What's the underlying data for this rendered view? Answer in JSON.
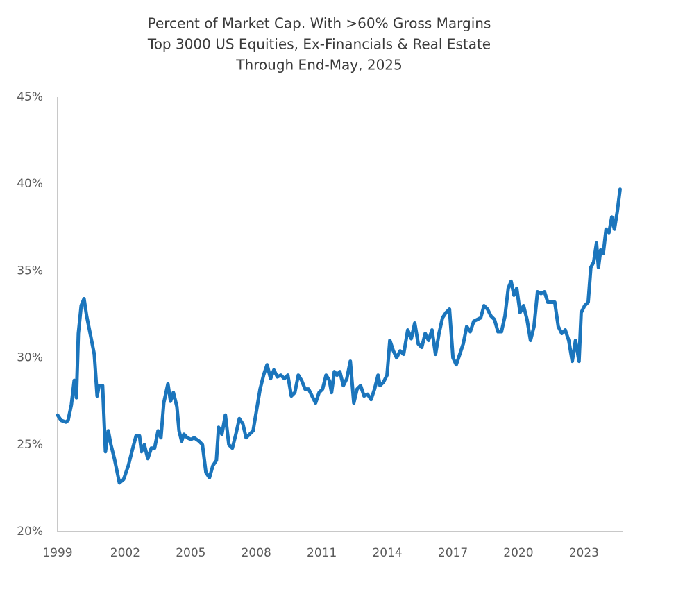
{
  "chart_data": {
    "type": "line",
    "title_lines": [
      "Percent of Market Cap. With >60% Gross Margins",
      "Top 3000 US Equities, Ex-Financials & Real Estate",
      "Through End-May, 2025"
    ],
    "x": [
      1999.0,
      1999.16,
      1999.38,
      1999.48,
      1999.63,
      1999.76,
      1999.86,
      1999.95,
      2000.08,
      2000.21,
      2000.33,
      2000.49,
      2000.68,
      2000.81,
      2000.9,
      2001.06,
      2001.19,
      2001.32,
      2001.44,
      2001.6,
      2001.83,
      2002.02,
      2002.24,
      2002.4,
      2002.59,
      2002.75,
      2002.84,
      2002.97,
      2003.13,
      2003.29,
      2003.44,
      2003.6,
      2003.73,
      2003.86,
      2004.05,
      2004.17,
      2004.3,
      2004.46,
      2004.56,
      2004.68,
      2004.78,
      2004.94,
      2005.1,
      2005.25,
      2005.48,
      2005.63,
      2005.79,
      2005.95,
      2006.11,
      2006.27,
      2006.37,
      2006.52,
      2006.68,
      2006.84,
      2007.0,
      2007.16,
      2007.32,
      2007.48,
      2007.63,
      2007.79,
      2007.95,
      2008.11,
      2008.27,
      2008.43,
      2008.59,
      2008.75,
      2008.9,
      2009.06,
      2009.22,
      2009.38,
      2009.54,
      2009.7,
      2009.86,
      2010.02,
      2010.17,
      2010.33,
      2010.49,
      2010.65,
      2010.81,
      2010.97,
      2011.13,
      2011.29,
      2011.44,
      2011.54,
      2011.67,
      2011.79,
      2011.92,
      2012.08,
      2012.24,
      2012.4,
      2012.56,
      2012.71,
      2012.87,
      2013.03,
      2013.19,
      2013.35,
      2013.51,
      2013.67,
      2013.76,
      2013.92,
      2014.08,
      2014.21,
      2014.37,
      2014.52,
      2014.68,
      2014.84,
      2015.03,
      2015.19,
      2015.35,
      2015.51,
      2015.67,
      2015.83,
      2015.98,
      2016.14,
      2016.3,
      2016.46,
      2016.62,
      2016.78,
      2016.94,
      2017.1,
      2017.25,
      2017.41,
      2017.57,
      2017.73,
      2017.89,
      2018.05,
      2018.21,
      2018.37,
      2018.52,
      2018.68,
      2018.84,
      2019.0,
      2019.16,
      2019.32,
      2019.48,
      2019.63,
      2019.76,
      2019.89,
      2020.02,
      2020.17,
      2020.33,
      2020.49,
      2020.65,
      2020.81,
      2020.97,
      2021.13,
      2021.29,
      2021.44,
      2021.6,
      2021.76,
      2021.92,
      2022.08,
      2022.24,
      2022.4,
      2022.56,
      2022.71,
      2022.87,
      2022.97,
      2023.13,
      2023.29,
      2023.41,
      2023.54,
      2023.67,
      2023.76,
      2023.86,
      2023.98,
      2024.11,
      2024.24,
      2024.37,
      2024.49,
      2024.62,
      2024.75
    ],
    "series": [
      {
        "color": "#1b75bc",
        "values": [
          26.7,
          26.4,
          26.3,
          26.4,
          27.3,
          28.7,
          27.7,
          31.4,
          33.0,
          33.4,
          32.4,
          31.4,
          30.2,
          27.8,
          28.4,
          28.4,
          24.6,
          25.8,
          25.0,
          24.2,
          22.8,
          23.0,
          23.8,
          24.6,
          25.5,
          25.5,
          24.6,
          25.0,
          24.2,
          24.8,
          24.8,
          25.8,
          25.4,
          27.4,
          28.5,
          27.5,
          28.0,
          27.2,
          25.8,
          25.2,
          25.6,
          25.4,
          25.3,
          25.4,
          25.2,
          25.0,
          23.4,
          23.1,
          23.8,
          24.1,
          26.0,
          25.6,
          26.7,
          25.0,
          24.8,
          25.6,
          26.5,
          26.2,
          25.4,
          25.6,
          25.8,
          27.0,
          28.2,
          29.0,
          29.6,
          28.8,
          29.3,
          28.9,
          29.0,
          28.8,
          29.0,
          27.8,
          28.0,
          29.0,
          28.7,
          28.2,
          28.2,
          27.8,
          27.4,
          28.0,
          28.2,
          29.0,
          28.7,
          28.0,
          29.2,
          29.0,
          29.2,
          28.4,
          28.8,
          29.8,
          27.4,
          28.2,
          28.4,
          27.8,
          27.9,
          27.6,
          28.2,
          29.0,
          28.4,
          28.6,
          29.0,
          31.0,
          30.4,
          30.0,
          30.4,
          30.2,
          31.6,
          31.1,
          32.0,
          30.8,
          30.6,
          31.4,
          31.0,
          31.6,
          30.2,
          31.4,
          32.3,
          32.6,
          32.8,
          30.0,
          29.6,
          30.2,
          30.8,
          31.8,
          31.5,
          32.1,
          32.2,
          32.3,
          33.0,
          32.8,
          32.4,
          32.2,
          31.5,
          31.5,
          32.4,
          34.0,
          34.4,
          33.6,
          34.0,
          32.6,
          33.0,
          32.2,
          31.0,
          31.8,
          33.8,
          33.7,
          33.8,
          33.2,
          33.2,
          33.2,
          31.8,
          31.4,
          31.6,
          31.0,
          29.8,
          31.0,
          29.8,
          32.6,
          33.0,
          33.2,
          35.2,
          35.5,
          36.6,
          35.2,
          36.2,
          36.0,
          37.4,
          37.2,
          38.1,
          37.4,
          38.4,
          39.7
        ]
      }
    ],
    "xlim": [
      1999,
      2024.8
    ],
    "xticks": [
      1999,
      2002,
      2005,
      2008,
      2011,
      2014,
      2017,
      2020,
      2023
    ],
    "ylim": [
      20,
      45
    ],
    "yticks": [
      {
        "value": 20,
        "label": "20%"
      },
      {
        "value": 25,
        "label": "25%"
      },
      {
        "value": 30,
        "label": "30%"
      },
      {
        "value": 35,
        "label": "35%"
      },
      {
        "value": 40,
        "label": "40%"
      },
      {
        "value": 45,
        "label": "45%"
      }
    ],
    "grid": false
  }
}
